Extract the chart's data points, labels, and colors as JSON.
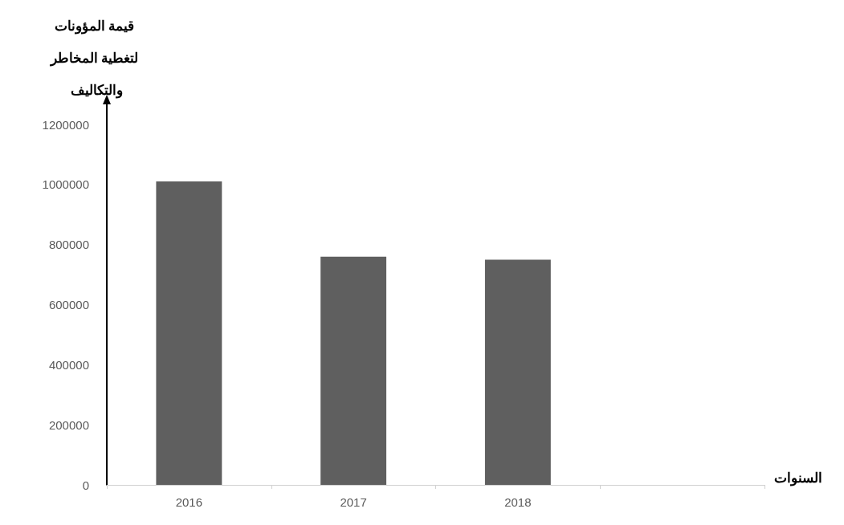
{
  "chart_data": {
    "type": "bar",
    "ylabel": "قيمة المؤونات لتغطية المخاطر والتكاليف",
    "xlabel": "السنوات",
    "categories": [
      "2016",
      "2017",
      "2018",
      null
    ],
    "values": [
      1010000,
      760000,
      750000,
      null
    ],
    "color": "#5f5f5f",
    "ylim": [
      0,
      1200000
    ],
    "yticks": [
      0,
      200000,
      400000,
      600000,
      800000,
      1000000,
      1200000
    ],
    "grid": false
  }
}
